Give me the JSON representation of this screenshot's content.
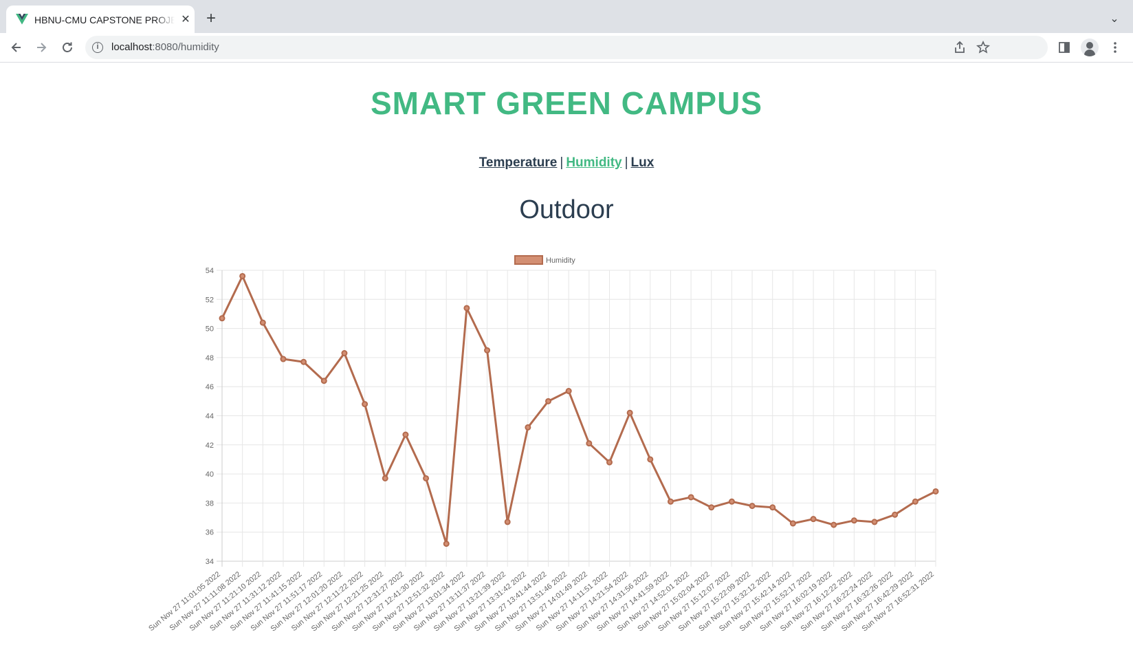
{
  "browser": {
    "tab_title": "HBNU-CMU CAPSTONE PROJECT",
    "url_host": "localhost",
    "url_rest": ":8080/humidity",
    "close_glyph": "✕",
    "newtab_glyph": "+",
    "tabsearch_glyph": "⌄",
    "icons": [
      "back-icon",
      "forward-icon",
      "reload-icon",
      "site-info-icon",
      "share-icon",
      "bookmark-star-icon",
      "side-panel-icon",
      "profile-icon",
      "menu-icon"
    ]
  },
  "page": {
    "title": "SMART GREEN CAMPUS",
    "nav": {
      "temperature": "Temperature",
      "humidity": "Humidity",
      "lux": "Lux",
      "separator": "|"
    },
    "section_title": "Outdoor"
  },
  "colors": {
    "accent": "#42b983",
    "text": "#2c3e50",
    "series_line": "#b36b4e",
    "series_fill": "#d38f73"
  },
  "chart_data": {
    "type": "line",
    "legend": [
      "Humidity"
    ],
    "legend_position": "top",
    "grid": true,
    "ylim": [
      34,
      54
    ],
    "yticks": [
      34,
      36,
      38,
      40,
      42,
      44,
      46,
      48,
      50,
      52,
      54
    ],
    "x": [
      "Sun Nov 27 11:01:05 2022",
      "Sun Nov 27 11:11:08 2022",
      "Sun Nov 27 11:21:10 2022",
      "Sun Nov 27 11:31:12 2022",
      "Sun Nov 27 11:41:15 2022",
      "Sun Nov 27 11:51:17 2022",
      "Sun Nov 27 12:01:20 2022",
      "Sun Nov 27 12:11:22 2022",
      "Sun Nov 27 12:21:25 2022",
      "Sun Nov 27 12:31:27 2022",
      "Sun Nov 27 12:41:30 2022",
      "Sun Nov 27 12:51:32 2022",
      "Sun Nov 27 13:01:34 2022",
      "Sun Nov 27 13:11:37 2022",
      "Sun Nov 27 13:21:39 2022",
      "Sun Nov 27 13:31:42 2022",
      "Sun Nov 27 13:41:44 2022",
      "Sun Nov 27 13:51:46 2022",
      "Sun Nov 27 14:01:49 2022",
      "Sun Nov 27 14:11:51 2022",
      "Sun Nov 27 14:21:54 2022",
      "Sun Nov 27 14:31:56 2022",
      "Sun Nov 27 14:41:59 2022",
      "Sun Nov 27 14:52:01 2022",
      "Sun Nov 27 15:02:04 2022",
      "Sun Nov 27 15:12:07 2022",
      "Sun Nov 27 15:22:09 2022",
      "Sun Nov 27 15:32:12 2022",
      "Sun Nov 27 15:42:14 2022",
      "Sun Nov 27 15:52:17 2022",
      "Sun Nov 27 16:02:19 2022",
      "Sun Nov 27 16:12:22 2022",
      "Sun Nov 27 16:22:24 2022",
      "Sun Nov 27 16:32:26 2022",
      "Sun Nov 27 16:42:29 2022",
      "Sun Nov 27 16:52:31 2022"
    ],
    "series": [
      {
        "name": "Humidity",
        "values": [
          50.7,
          53.6,
          50.4,
          47.9,
          47.7,
          46.4,
          48.3,
          44.8,
          39.7,
          42.7,
          39.7,
          35.2,
          51.4,
          48.5,
          36.7,
          43.2,
          45.0,
          45.7,
          42.1,
          40.8,
          44.2,
          41.0,
          38.1,
          38.4,
          37.7,
          38.1,
          37.8,
          37.7,
          36.6,
          36.9,
          36.5,
          36.8,
          36.7,
          37.2,
          38.1,
          38.8
        ]
      }
    ]
  }
}
